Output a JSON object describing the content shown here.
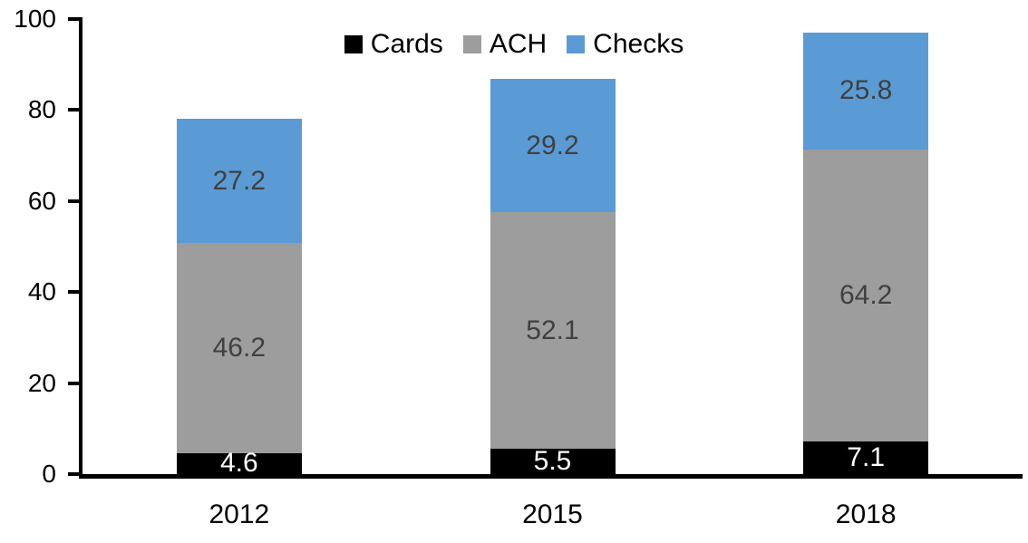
{
  "chart_data": {
    "type": "bar",
    "stacked": true,
    "title": "",
    "xlabel": "",
    "ylabel": "",
    "categories": [
      "2012",
      "2015",
      "2018"
    ],
    "series": [
      {
        "name": "Cards",
        "color": "#000000",
        "label_color": "#FFFFFF",
        "values": [
          4.6,
          5.5,
          7.1
        ]
      },
      {
        "name": "ACH",
        "color": "#9D9D9D",
        "label_color": "#404040",
        "values": [
          46.2,
          52.1,
          64.2
        ]
      },
      {
        "name": "Checks",
        "color": "#5B9BD5",
        "label_color": "#404040",
        "values": [
          27.2,
          29.2,
          25.8
        ]
      }
    ],
    "totals": [
      78.0,
      86.8,
      97.1
    ],
    "ylim": [
      0,
      100
    ],
    "yticks": [
      0,
      20,
      40,
      60,
      80,
      100
    ],
    "grid": false,
    "legend_position": "top-center",
    "data_label_format": "one-decimal",
    "axis_color": "#000000",
    "background_color": "#FFFFFF"
  }
}
